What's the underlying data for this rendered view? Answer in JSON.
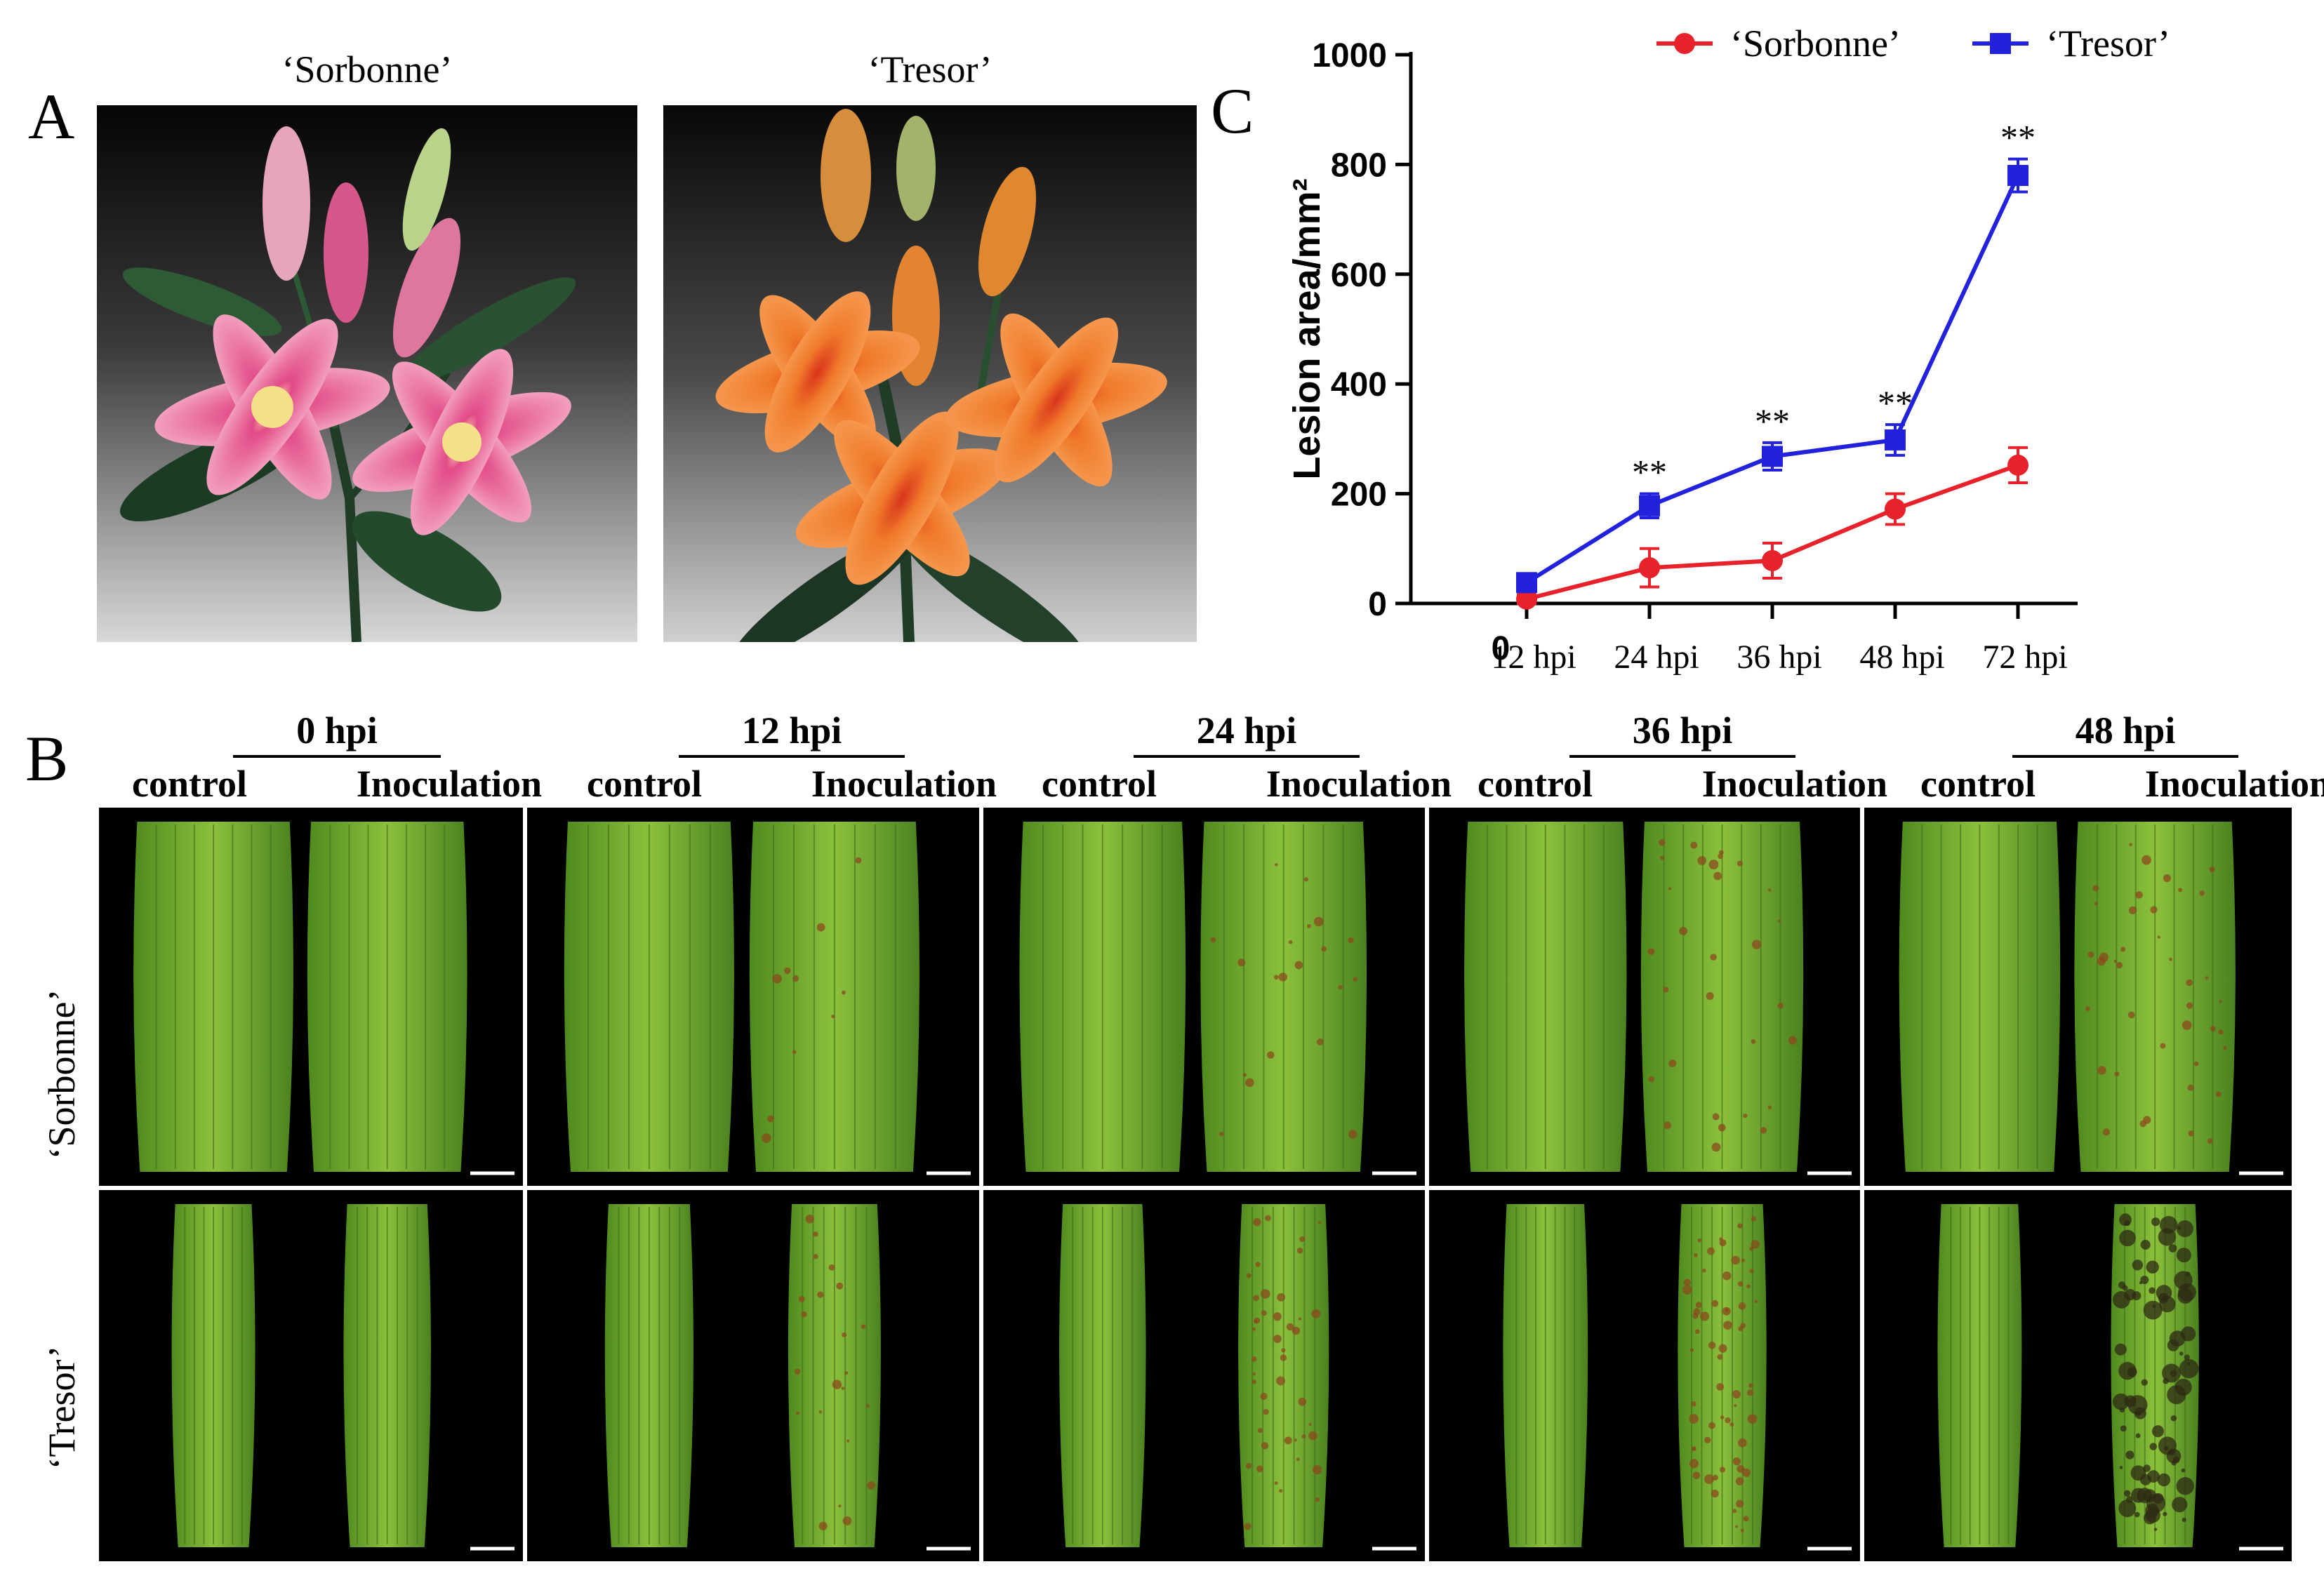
{
  "panel_labels": {
    "a": "A",
    "b": "B",
    "c": "C"
  },
  "panel_a": {
    "photos": [
      {
        "title": "‘Sorbonne’",
        "subject": "pink oriental lily with buds"
      },
      {
        "title": "‘Tresor’",
        "subject": "orange Asiatic lily with buds"
      }
    ]
  },
  "panel_b": {
    "time_groups": [
      {
        "label": "0 hpi",
        "control": "control",
        "treated": "Inoculation"
      },
      {
        "label": "12 hpi",
        "control": "control",
        "treated": "Inoculation"
      },
      {
        "label": "24 hpi",
        "control": "control",
        "treated": "Inoculation"
      },
      {
        "label": "36 hpi",
        "control": "control",
        "treated": "Inoculation"
      },
      {
        "label": "48 hpi",
        "control": "control",
        "treated": "Inoculation"
      }
    ],
    "rows": [
      {
        "label": "‘Sorbonne’"
      },
      {
        "label": "‘Tresor’"
      }
    ]
  },
  "chart_data": {
    "type": "line",
    "ylabel": "Lesion area/mm²",
    "xlabel": "",
    "ylim": [
      0,
      1000
    ],
    "yticks": [
      "0",
      "200",
      "400",
      "600",
      "800",
      "1000"
    ],
    "x_origin_label": "0",
    "categories": [
      "12 hpi",
      "24 hpi",
      "36 hpi",
      "48 hpi",
      "72 hpi"
    ],
    "series": [
      {
        "name": "‘Sorbonne’",
        "color": "#e8222a",
        "marker": "circle",
        "values": [
          8,
          65,
          78,
          172,
          252
        ],
        "errors": [
          8,
          35,
          32,
          28,
          32
        ]
      },
      {
        "name": "‘Tresor’",
        "color": "#2222dd",
        "marker": "square",
        "values": [
          38,
          178,
          268,
          298,
          780
        ],
        "errors": [
          15,
          22,
          25,
          28,
          30
        ]
      }
    ],
    "significance": [
      "",
      "**",
      "**",
      "**",
      "**"
    ],
    "legend_position": "top"
  },
  "colors": {
    "sorbonne": "#e8222a",
    "tresor": "#2222dd",
    "leaf": "#7fb234"
  }
}
